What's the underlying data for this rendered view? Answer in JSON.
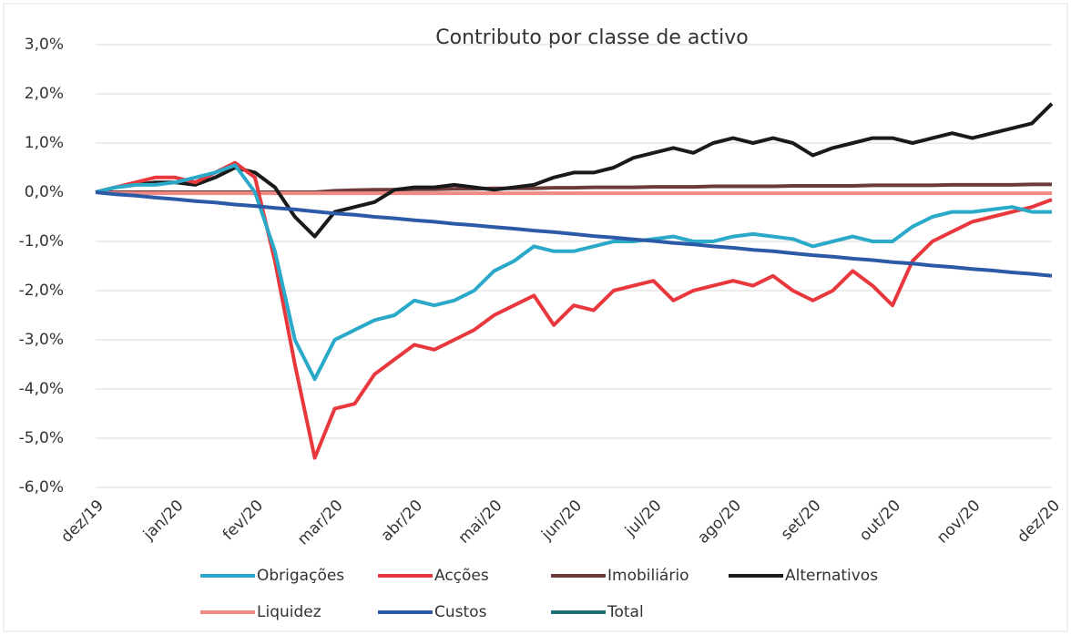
{
  "chart_data": {
    "type": "line",
    "title": "Contributo por classe de activo",
    "categories": [
      "dez/19",
      null,
      null,
      null,
      "jan/20",
      null,
      null,
      null,
      "fev/20",
      null,
      null,
      null,
      "mar/20",
      null,
      null,
      null,
      "abr/20",
      null,
      null,
      null,
      "mai/20",
      null,
      null,
      null,
      "jun/20",
      null,
      null,
      null,
      "jul/20",
      null,
      null,
      null,
      "ago/20",
      null,
      null,
      null,
      "set/20",
      null,
      null,
      null,
      "out/20",
      null,
      null,
      null,
      "nov/20",
      null,
      null,
      null,
      "dez/20"
    ],
    "series": [
      {
        "name": "Obrigações",
        "color": "#2aa9c9",
        "values": [
          0,
          0.1,
          0.15,
          0.15,
          0.2,
          0.3,
          0.4,
          0.55,
          0.0,
          -1.2,
          -3.0,
          -3.8,
          -3.0,
          -2.8,
          -2.6,
          -2.5,
          -2.2,
          -2.3,
          -2.2,
          -2.0,
          -1.6,
          -1.4,
          -1.1,
          -1.2,
          -1.2,
          -1.1,
          -1.0,
          -1.0,
          -0.95,
          -0.9,
          -1.0,
          -1.0,
          -0.9,
          -0.85,
          -0.9,
          -0.95,
          -1.1,
          -1.0,
          -0.9,
          -1.0,
          -1.0,
          -0.7,
          -0.5,
          -0.4,
          -0.4,
          -0.35,
          -0.3,
          -0.4,
          -0.4
        ]
      },
      {
        "name": "Acções",
        "color": "#e8383d",
        "values": [
          0,
          0.1,
          0.2,
          0.3,
          0.3,
          0.2,
          0.4,
          0.6,
          0.3,
          -1.4,
          -3.5,
          -5.4,
          -4.4,
          -4.3,
          -3.7,
          -3.4,
          -3.1,
          -3.2,
          -3.0,
          -2.8,
          -2.5,
          -2.3,
          -2.1,
          -2.7,
          -2.3,
          -2.4,
          -2.0,
          -1.9,
          -1.8,
          -2.2,
          -2.0,
          -1.9,
          -1.8,
          -1.9,
          -1.7,
          -2.0,
          -2.2,
          -2.0,
          -1.6,
          -1.9,
          -2.3,
          -1.4,
          -1.0,
          -0.8,
          -0.6,
          -0.5,
          -0.4,
          -0.3,
          -0.15
        ]
      },
      {
        "name": "Imobiliário",
        "color": "#6e3b3b",
        "values": [
          0,
          0,
          0,
          0,
          0,
          0,
          0,
          0,
          0,
          0,
          0,
          0,
          0.03,
          0.04,
          0.05,
          0.05,
          0.06,
          0.06,
          0.07,
          0.07,
          0.08,
          0.08,
          0.08,
          0.09,
          0.09,
          0.1,
          0.1,
          0.1,
          0.11,
          0.11,
          0.11,
          0.12,
          0.12,
          0.12,
          0.12,
          0.13,
          0.13,
          0.13,
          0.13,
          0.14,
          0.14,
          0.14,
          0.14,
          0.15,
          0.15,
          0.15,
          0.15,
          0.16,
          0.16
        ]
      },
      {
        "name": "Alternativos",
        "color": "#1a1a1a",
        "values": [
          0,
          0.1,
          0.15,
          0.2,
          0.2,
          0.15,
          0.3,
          0.5,
          0.4,
          0.1,
          -0.5,
          -0.9,
          -0.4,
          -0.3,
          -0.2,
          0.05,
          0.1,
          0.1,
          0.15,
          0.1,
          0.05,
          0.1,
          0.15,
          0.3,
          0.4,
          0.4,
          0.5,
          0.7,
          0.8,
          0.9,
          0.8,
          1.0,
          1.1,
          1.0,
          1.1,
          1.0,
          0.75,
          0.9,
          1.0,
          1.1,
          1.1,
          1.0,
          1.1,
          1.2,
          1.1,
          1.2,
          1.3,
          1.4,
          1.8
        ]
      },
      {
        "name": "Liquidez",
        "color": "#f08a84",
        "values": [
          0,
          -0.02,
          -0.02,
          -0.02,
          -0.02,
          -0.02,
          -0.02,
          -0.02,
          -0.02,
          -0.02,
          -0.02,
          -0.02,
          -0.02,
          -0.02,
          -0.02,
          -0.02,
          -0.02,
          -0.02,
          -0.02,
          -0.02,
          -0.02,
          -0.02,
          -0.02,
          -0.02,
          -0.02,
          -0.02,
          -0.02,
          -0.02,
          -0.02,
          -0.02,
          -0.02,
          -0.02,
          -0.02,
          -0.02,
          -0.02,
          -0.02,
          -0.02,
          -0.02,
          -0.02,
          -0.02,
          -0.02,
          -0.02,
          -0.02,
          -0.02,
          -0.02,
          -0.02,
          -0.02,
          -0.02,
          -0.02
        ]
      },
      {
        "name": "Custos",
        "color": "#2d5aa6",
        "values": [
          0,
          -0.04,
          -0.07,
          -0.11,
          -0.14,
          -0.18,
          -0.21,
          -0.25,
          -0.28,
          -0.32,
          -0.35,
          -0.39,
          -0.43,
          -0.46,
          -0.5,
          -0.53,
          -0.57,
          -0.6,
          -0.64,
          -0.67,
          -0.71,
          -0.74,
          -0.78,
          -0.81,
          -0.85,
          -0.89,
          -0.92,
          -0.96,
          -0.99,
          -1.03,
          -1.06,
          -1.1,
          -1.13,
          -1.17,
          -1.2,
          -1.24,
          -1.28,
          -1.31,
          -1.35,
          -1.38,
          -1.42,
          -1.45,
          -1.49,
          -1.52,
          -1.56,
          -1.59,
          -1.63,
          -1.66,
          -1.7
        ]
      },
      {
        "name": "Total",
        "color": "#1b6e78",
        "values": [
          null,
          null,
          null,
          null,
          null,
          null,
          null,
          null,
          null,
          null,
          null,
          null,
          null,
          null,
          null,
          null,
          null,
          null,
          null,
          null,
          null,
          null,
          null,
          null,
          null,
          null,
          null,
          null,
          null,
          null,
          null,
          null,
          null,
          null,
          null,
          null,
          null,
          null,
          null,
          null,
          null,
          null,
          null,
          null,
          null,
          null,
          null,
          null,
          null
        ]
      }
    ],
    "ylim": [
      -6,
      3
    ],
    "yticks": [
      {
        "value": -6,
        "label": "-6,0%"
      },
      {
        "value": -5,
        "label": "-5,0%"
      },
      {
        "value": -4,
        "label": "-4,0%"
      },
      {
        "value": -3,
        "label": "-3,0%"
      },
      {
        "value": -2,
        "label": "-2,0%"
      },
      {
        "value": -1,
        "label": "-1,0%"
      },
      {
        "value": 0,
        "label": "0,0%"
      },
      {
        "value": 1,
        "label": "1,0%"
      },
      {
        "value": 2,
        "label": "2,0%"
      },
      {
        "value": 3,
        "label": "3,0%"
      }
    ],
    "grid": true
  }
}
